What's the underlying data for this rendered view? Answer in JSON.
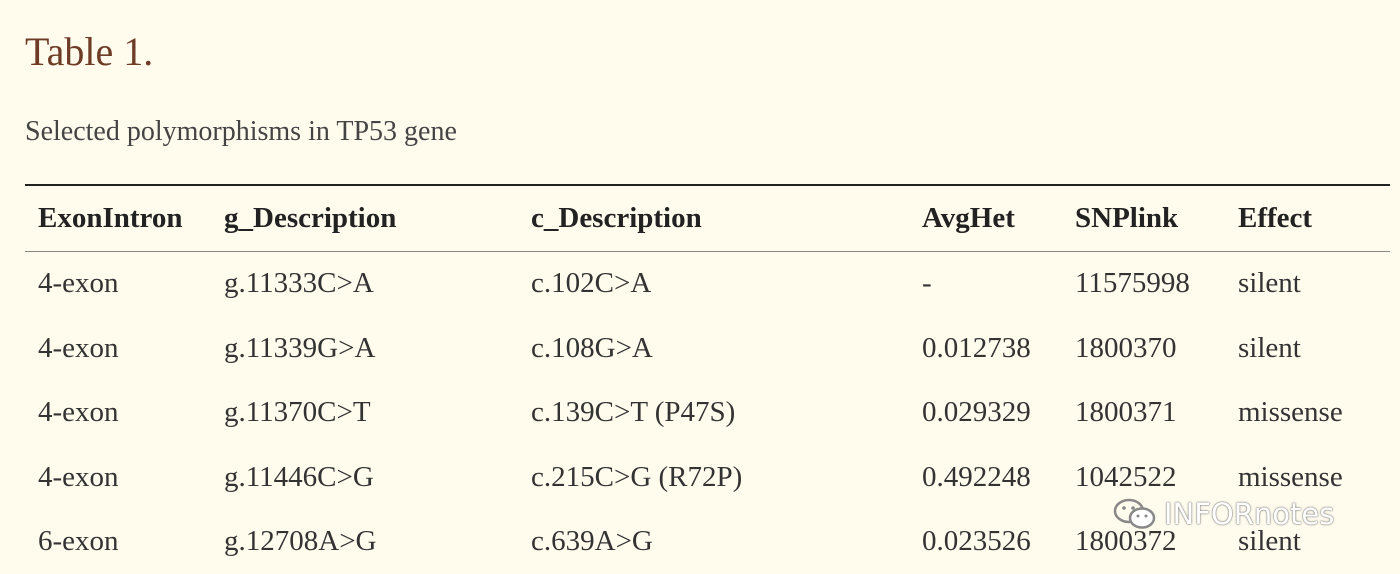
{
  "header": {
    "title": "Table 1.",
    "subtitle": "Selected polymorphisms in TP53 gene"
  },
  "table": {
    "columns": [
      "ExonIntron",
      "g_Description",
      "c_Description",
      "AvgHet",
      "SNPlink",
      "Effect"
    ],
    "rows": [
      [
        "4-exon",
        "g.11333C>A",
        "c.102C>A",
        "-",
        "11575998",
        "silent"
      ],
      [
        "4-exon",
        "g.11339G>A",
        "c.108G>A",
        "0.012738",
        "1800370",
        "silent"
      ],
      [
        "4-exon",
        "g.11370C>T",
        "c.139C>T (P47S)",
        "0.029329",
        "1800371",
        "missense"
      ],
      [
        "4-exon",
        "g.11446C>G",
        "c.215C>G (R72P)",
        "0.492248",
        "1042522",
        "missense"
      ],
      [
        "6-exon",
        "g.12708A>G",
        "c.639A>G",
        "0.023526",
        "1800372",
        "silent"
      ]
    ]
  },
  "watermark": "INFORnotes"
}
